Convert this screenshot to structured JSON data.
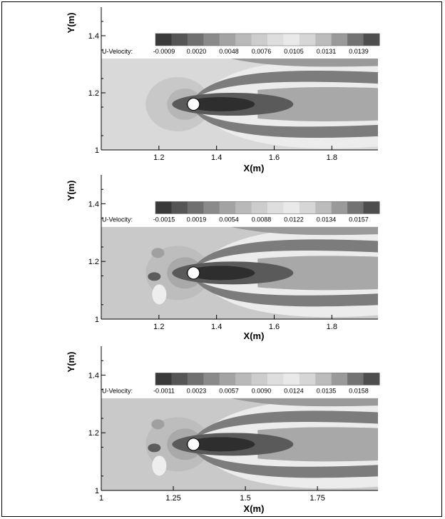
{
  "chart_data": [
    {
      "type": "heatmap",
      "xlabel": "X(m)",
      "ylabel": "Y(m)",
      "xlim": [
        1.0,
        1.96
      ],
      "ylim": [
        1.0,
        1.5
      ],
      "xticks": [
        1.2,
        1.4,
        1.6,
        1.8
      ],
      "xtick_labels": [
        "1.2",
        "1.4",
        "1.6",
        "1.8"
      ],
      "yticks": [
        1.0,
        1.2,
        1.4
      ],
      "ytick_labels": [
        "1",
        "1.2",
        "1.4"
      ],
      "legend_title": "U-Velocity:",
      "legend_labels": [
        "-0.0009",
        "0.0020",
        "0.0048",
        "0.0076",
        "0.0105",
        "0.0131",
        "0.0139"
      ],
      "cylinder": {
        "x": 1.32,
        "y": 1.16,
        "r": 0.018
      },
      "grid": false
    },
    {
      "type": "heatmap",
      "xlabel": "X(m)",
      "ylabel": "Y(m)",
      "xlim": [
        1.0,
        1.96
      ],
      "ylim": [
        1.0,
        1.5
      ],
      "xticks": [
        1.2,
        1.4,
        1.6,
        1.8
      ],
      "xtick_labels": [
        "1.2",
        "1.4",
        "1.6",
        "1.8"
      ],
      "yticks": [
        1.0,
        1.2,
        1.4
      ],
      "ytick_labels": [
        "1",
        "1.2",
        "1.4"
      ],
      "legend_title": "U-Velocity:",
      "legend_labels": [
        "-0.0015",
        "0.0019",
        "0.0054",
        "0.0088",
        "0.0122",
        "0.0134",
        "0.0157"
      ],
      "cylinder": {
        "x": 1.32,
        "y": 1.16,
        "r": 0.018
      },
      "grid": false
    },
    {
      "type": "heatmap",
      "xlabel": "X(m)",
      "ylabel": "Y(m)",
      "xlim": [
        1.0,
        1.96
      ],
      "ylim": [
        1.0,
        1.5
      ],
      "xticks": [
        1.0,
        1.25,
        1.5,
        1.75
      ],
      "xtick_labels": [
        "1",
        "1.25",
        "1.5",
        "1.75"
      ],
      "yticks": [
        1.0,
        1.2,
        1.4
      ],
      "ytick_labels": [
        "1",
        "1.2",
        "1.4"
      ],
      "legend_title": "U-Velocity:",
      "legend_labels": [
        "-0.0011",
        "0.0023",
        "0.0057",
        "0.0090",
        "0.0124",
        "0.0135",
        "0.0158"
      ],
      "cylinder": {
        "x": 1.32,
        "y": 1.16,
        "r": 0.018
      },
      "grid": false
    }
  ]
}
